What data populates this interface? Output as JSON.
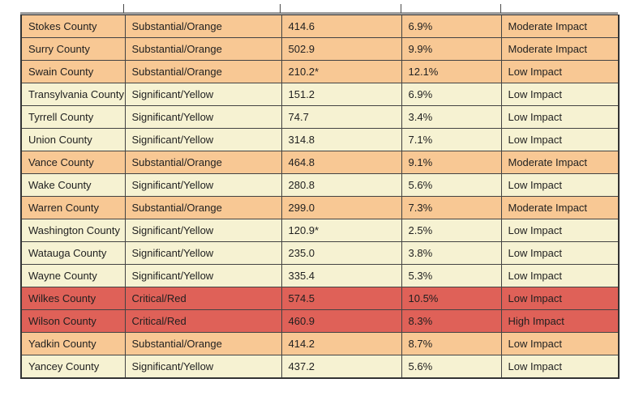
{
  "table": {
    "tone_colors": {
      "orange": "#F8C894",
      "yellow": "#F6F2D2",
      "red": "#DF6158"
    },
    "text_color": "#1f1f1f",
    "border_color": "#434343",
    "rows": [
      {
        "county": "Stokes County",
        "alert_level": "Substantial/Orange",
        "rate": "414.6",
        "percent_positive": "6.9%",
        "impact": "Moderate Impact",
        "tone": "orange"
      },
      {
        "county": "Surry County",
        "alert_level": "Substantial/Orange",
        "rate": "502.9",
        "percent_positive": "9.9%",
        "impact": "Moderate Impact",
        "tone": "orange"
      },
      {
        "county": "Swain County",
        "alert_level": "Substantial/Orange",
        "rate": "210.2*",
        "percent_positive": "12.1%",
        "impact": "Low Impact",
        "tone": "orange"
      },
      {
        "county": "Transylvania County",
        "alert_level": "Significant/Yellow",
        "rate": "151.2",
        "percent_positive": "6.9%",
        "impact": "Low Impact",
        "tone": "yellow"
      },
      {
        "county": "Tyrrell County",
        "alert_level": "Significant/Yellow",
        "rate": "74.7",
        "percent_positive": "3.4%",
        "impact": "Low Impact",
        "tone": "yellow"
      },
      {
        "county": "Union County",
        "alert_level": "Significant/Yellow",
        "rate": "314.8",
        "percent_positive": "7.1%",
        "impact": "Low Impact",
        "tone": "yellow"
      },
      {
        "county": "Vance County",
        "alert_level": "Substantial/Orange",
        "rate": "464.8",
        "percent_positive": "9.1%",
        "impact": "Moderate Impact",
        "tone": "orange"
      },
      {
        "county": "Wake County",
        "alert_level": "Significant/Yellow",
        "rate": "280.8",
        "percent_positive": "5.6%",
        "impact": "Low Impact",
        "tone": "yellow"
      },
      {
        "county": "Warren County",
        "alert_level": "Substantial/Orange",
        "rate": "299.0",
        "percent_positive": "7.3%",
        "impact": "Moderate Impact",
        "tone": "orange"
      },
      {
        "county": "Washington County",
        "alert_level": "Significant/Yellow",
        "rate": "120.9*",
        "percent_positive": "2.5%",
        "impact": "Low Impact",
        "tone": "yellow"
      },
      {
        "county": "Watauga County",
        "alert_level": "Significant/Yellow",
        "rate": "235.0",
        "percent_positive": "3.8%",
        "impact": "Low Impact",
        "tone": "yellow"
      },
      {
        "county": "Wayne County",
        "alert_level": "Significant/Yellow",
        "rate": "335.4",
        "percent_positive": "5.3%",
        "impact": "Low Impact",
        "tone": "yellow"
      },
      {
        "county": "Wilkes County",
        "alert_level": "Critical/Red",
        "rate": "574.5",
        "percent_positive": "10.5%",
        "impact": "Low Impact",
        "tone": "red"
      },
      {
        "county": "Wilson County",
        "alert_level": "Critical/Red",
        "rate": "460.9",
        "percent_positive": "8.3%",
        "impact": "High Impact",
        "tone": "red"
      },
      {
        "county": "Yadkin County",
        "alert_level": "Substantial/Orange",
        "rate": "414.2",
        "percent_positive": "8.7%",
        "impact": "Low Impact",
        "tone": "orange"
      },
      {
        "county": "Yancey County",
        "alert_level": "Significant/Yellow",
        "rate": "437.2",
        "percent_positive": "5.6%",
        "impact": "Low Impact",
        "tone": "yellow"
      }
    ]
  }
}
